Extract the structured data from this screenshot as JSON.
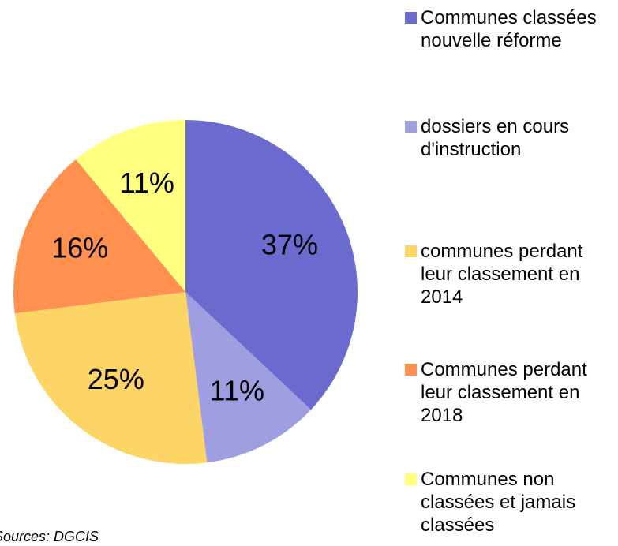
{
  "chart_data": {
    "type": "pie",
    "categories": [
      "Communes classées nouvelle réforme",
      "dossiers en cours d'instruction",
      "communes perdant leur classement en 2014",
      "Communes perdant leur classement en 2018",
      "Communes non classées et jamais classées"
    ],
    "values": [
      37,
      11,
      25,
      16,
      11
    ],
    "value_labels": [
      "37%",
      "11%",
      "25%",
      "16%",
      "11%"
    ],
    "colors": [
      "#6b6bcf",
      "#9e9ee0",
      "#fdd466",
      "#ff9050",
      "#ffff80"
    ],
    "legend": "right",
    "source": "Sources: DGCIS"
  }
}
